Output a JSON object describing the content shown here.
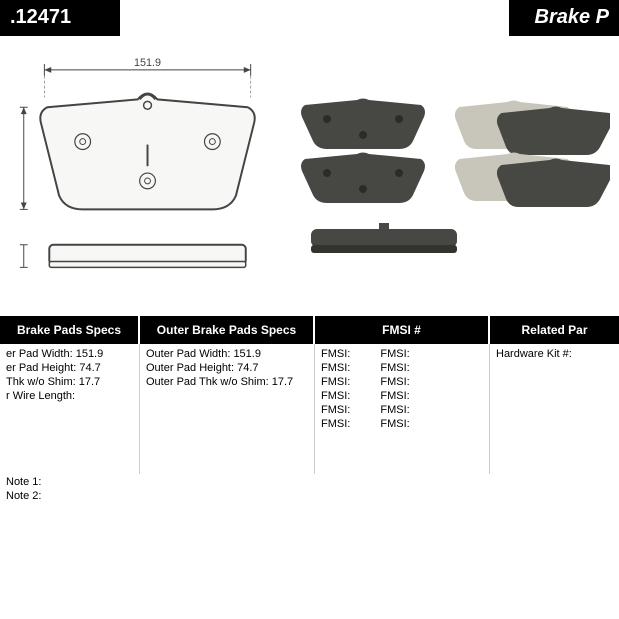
{
  "header": {
    "part_number": ".12471",
    "title_right": "Brake P"
  },
  "diagram": {
    "width_label": "151.9",
    "stroke": "#444444",
    "fill": "#f7f7f5"
  },
  "photos": {
    "pad_color": "#474744",
    "shim_color": "#c8c6ba"
  },
  "spec_headers": {
    "inner": "Brake Pads Specs",
    "outer": "Outer Brake Pads Specs",
    "fmsi": "FMSI #",
    "related": "Related Par"
  },
  "inner_specs": {
    "width": {
      "label": "er Pad Width:",
      "value": "151.9"
    },
    "height": {
      "label": "er Pad Height:",
      "value": "74.7"
    },
    "thk": {
      "label": "Thk w/o Shim:",
      "value": "17.7"
    },
    "wire": {
      "label": "r Wire Length:",
      "value": ""
    }
  },
  "outer_specs": {
    "width": {
      "label": "Outer Pad Width:",
      "value": "151.9"
    },
    "height": {
      "label": "Outer Pad Height:",
      "value": "74.7"
    },
    "thk": {
      "label": "Outer Pad Thk w/o Shim:",
      "value": "17.7"
    }
  },
  "fmsi": {
    "label": "FMSI:",
    "rows": 6
  },
  "related": {
    "hardware": "Hardware Kit #:"
  },
  "notes": {
    "n1": "Note 1:",
    "n2": "Note 2:"
  },
  "col_widths": {
    "inner": "140px",
    "outer": "175px",
    "fmsi": "175px",
    "related": "129px"
  }
}
